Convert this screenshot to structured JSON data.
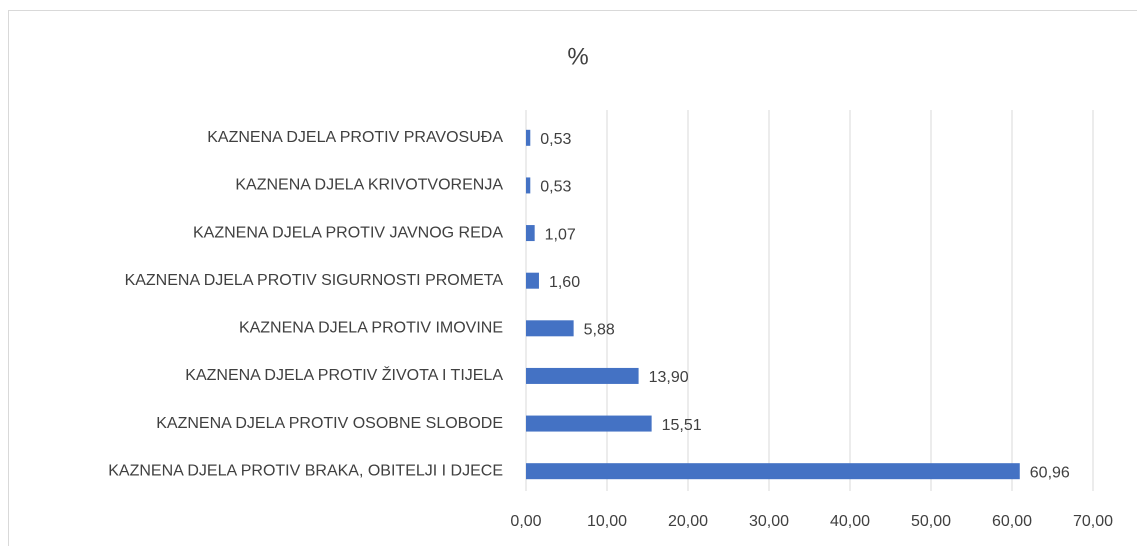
{
  "chart_data": {
    "type": "bar",
    "orientation": "horizontal",
    "title": "%",
    "categories": [
      "KAZNENA DJELA PROTIV PRAVOSUĐA",
      "KAZNENA DJELA KRIVOTVORENJA",
      "KAZNENA DJELA PROTIV JAVNOG REDA",
      "KAZNENA DJELA PROTIV SIGURNOSTI PROMETA",
      "KAZNENA DJELA PROTIV IMOVINE",
      "KAZNENA DJELA PROTIV ŽIVOTA I TIJELA",
      "KAZNENA DJELA PROTIV OSOBNE SLOBODE",
      "KAZNENA DJELA PROTIV BRAKA, OBITELJI I DJECE"
    ],
    "values": [
      0.53,
      0.53,
      1.07,
      1.6,
      5.88,
      13.9,
      15.51,
      60.96
    ],
    "value_labels": [
      "0,53",
      "0,53",
      "1,07",
      "1,60",
      "5,88",
      "13,90",
      "15,51",
      "60,96"
    ],
    "color": "#4472c4",
    "xlim": [
      0,
      70
    ],
    "xticks": [
      {
        "value": 0,
        "label": "0,00"
      },
      {
        "value": 10,
        "label": "10,00"
      },
      {
        "value": 20,
        "label": "20,00"
      },
      {
        "value": 30,
        "label": "30,00"
      },
      {
        "value": 40,
        "label": "40,00"
      },
      {
        "value": 50,
        "label": "50,00"
      },
      {
        "value": 60,
        "label": "60,00"
      },
      {
        "value": 70,
        "label": "70,00"
      }
    ],
    "grid": true
  }
}
